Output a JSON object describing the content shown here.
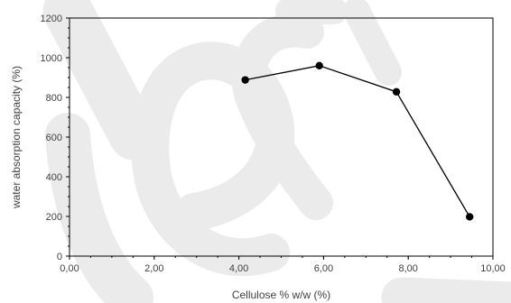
{
  "chart_data": {
    "type": "scatter",
    "title": "",
    "xlabel": "Cellulose % w/w (%)",
    "ylabel": "water absorption capacity (%)",
    "xlim": [
      0,
      10
    ],
    "ylim": [
      0,
      1200
    ],
    "x_ticks": [
      "0,00",
      "2,00",
      "4,00",
      "6,00",
      "8,00",
      "10,00"
    ],
    "y_ticks": [
      "0",
      "200",
      "400",
      "600",
      "800",
      "1000",
      "1200"
    ],
    "x": [
      4.15,
      5.9,
      7.72,
      9.45
    ],
    "y": [
      888,
      960,
      828,
      198
    ],
    "connect_points": true,
    "grid": false,
    "marker_color": "#000000",
    "line_color": "#000000",
    "watermark_color": "#ebebeb"
  }
}
